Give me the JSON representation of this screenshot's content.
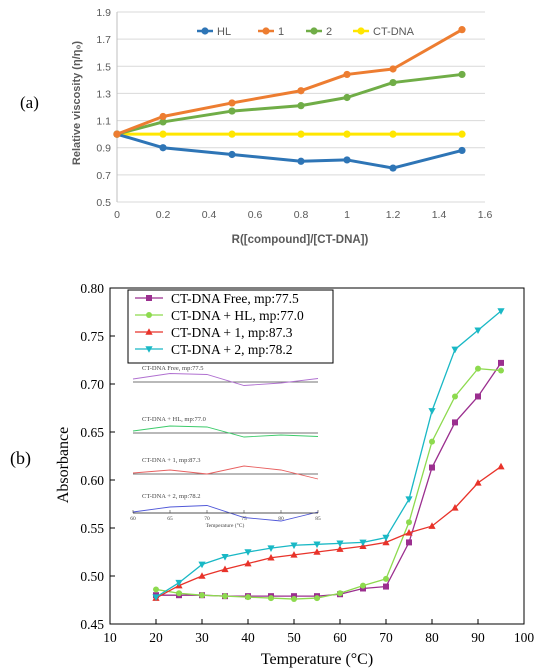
{
  "panel_a": {
    "label": "(a)",
    "ylabel": "Relative viscosity (η/η₀)",
    "xlabel": "R([compound]/[CT-DNA])"
  },
  "panel_b": {
    "label": "(b)",
    "ylabel": "Absorbance",
    "xlabel": "Temperature (°C)",
    "inset_xlabel": "Temperature (°C)"
  },
  "chart_data": [
    {
      "type": "line",
      "panel": "(a)",
      "title": "",
      "xlabel": "R([compound]/[CT-DNA])",
      "ylabel": "Relative viscosity (η/η₀)",
      "xlim": [
        0,
        1.6
      ],
      "ylim": [
        0.5,
        1.9
      ],
      "xticks": [
        "0",
        "0.2",
        "0.4",
        "0.6",
        "0.8",
        "1",
        "1.2",
        "1.4",
        "1.6"
      ],
      "yticks": [
        "0.5",
        "0.7",
        "0.9",
        "1.1",
        "1.3",
        "1.5",
        "1.7",
        "1.9"
      ],
      "grid": "horizontal",
      "legend": "top",
      "x": [
        0,
        0.2,
        0.5,
        0.8,
        1.0,
        1.2,
        1.5
      ],
      "series": [
        {
          "name": "HL",
          "color": "#2E75B6",
          "values": [
            1.0,
            0.9,
            0.85,
            0.8,
            0.81,
            0.75,
            0.88
          ]
        },
        {
          "name": "1",
          "color": "#ED7D31",
          "values": [
            1.0,
            1.13,
            1.23,
            1.32,
            1.44,
            1.48,
            1.77
          ]
        },
        {
          "name": "2",
          "color": "#70AD47",
          "values": [
            1.0,
            1.09,
            1.17,
            1.21,
            1.27,
            1.38,
            1.44
          ]
        },
        {
          "name": "CT-DNA",
          "color": "#FFE600",
          "values": [
            1.0,
            1.0,
            1.0,
            1.0,
            1.0,
            1.0,
            1.0
          ]
        }
      ]
    },
    {
      "type": "line",
      "panel": "(b)",
      "title": "",
      "xlabel": "Temperature (°C)",
      "ylabel": "Absorbance",
      "xlim": [
        10,
        100
      ],
      "ylim": [
        0.45,
        0.8
      ],
      "xticks": [
        "10",
        "20",
        "30",
        "40",
        "50",
        "60",
        "70",
        "80",
        "90",
        "100"
      ],
      "yticks": [
        "0.45",
        "0.50",
        "0.55",
        "0.60",
        "0.65",
        "0.70",
        "0.75",
        "0.80"
      ],
      "grid": "none",
      "legend": "top-left",
      "x": [
        20,
        25,
        30,
        35,
        40,
        45,
        50,
        55,
        60,
        65,
        70,
        75,
        80,
        85,
        90,
        95
      ],
      "series": [
        {
          "name": "CT-DNA Free, mp:77.5",
          "color": "#9B2F8F",
          "marker": "square",
          "values": [
            0.48,
            0.48,
            0.48,
            0.479,
            0.479,
            0.479,
            0.479,
            0.479,
            0.481,
            0.487,
            0.489,
            0.535,
            0.613,
            0.66,
            0.687,
            0.722
          ]
        },
        {
          "name": "CT-DNA + HL, mp:77.0",
          "color": "#8DDA4E",
          "marker": "circle",
          "values": [
            0.486,
            0.482,
            0.48,
            0.479,
            0.478,
            0.477,
            0.476,
            0.477,
            0.482,
            0.49,
            0.497,
            0.556,
            0.64,
            0.687,
            0.716,
            0.714
          ]
        },
        {
          "name": "CT-DNA + 1, mp:87.3",
          "color": "#E8332A",
          "marker": "triangle",
          "values": [
            0.477,
            0.49,
            0.5,
            0.507,
            0.513,
            0.519,
            0.522,
            0.525,
            0.528,
            0.531,
            0.535,
            0.545,
            0.552,
            0.571,
            0.597,
            0.614
          ]
        },
        {
          "name": "CT-DNA + 2, mp:78.2",
          "color": "#19B8C5",
          "marker": "triangle-down",
          "values": [
            0.478,
            0.493,
            0.512,
            0.52,
            0.525,
            0.529,
            0.532,
            0.533,
            0.534,
            0.535,
            0.54,
            0.58,
            0.672,
            0.736,
            0.756,
            0.776
          ]
        }
      ]
    },
    {
      "type": "line",
      "panel": "(b) inset",
      "xlabel": "Temperature (°C)",
      "xticks": [
        "60",
        "65",
        "70",
        "75",
        "80",
        "85"
      ],
      "x": [
        60,
        65,
        70,
        75,
        80,
        85
      ],
      "series": [
        {
          "name": "CT-DNA Free, mp:77.5",
          "color": "#B070D0",
          "values": [
            0.3,
            0.85,
            0.75,
            -0.35,
            -0.1,
            0.35
          ]
        },
        {
          "name": "CT-DNA + HL, mp:77.0",
          "color": "#3CCB6A",
          "values": [
            0.2,
            0.7,
            0.6,
            -0.4,
            -0.2,
            -0.35
          ]
        },
        {
          "name": "CT-DNA + 1, mp:87.3",
          "color": "#E86060",
          "values": [
            0.1,
            0.4,
            0.0,
            0.8,
            0.4,
            -0.5
          ]
        },
        {
          "name": "CT-DNA + 2, mp:78.2",
          "color": "#5058D8",
          "values": [
            0.1,
            0.6,
            0.75,
            -0.45,
            -0.8,
            0.1
          ]
        }
      ]
    }
  ]
}
